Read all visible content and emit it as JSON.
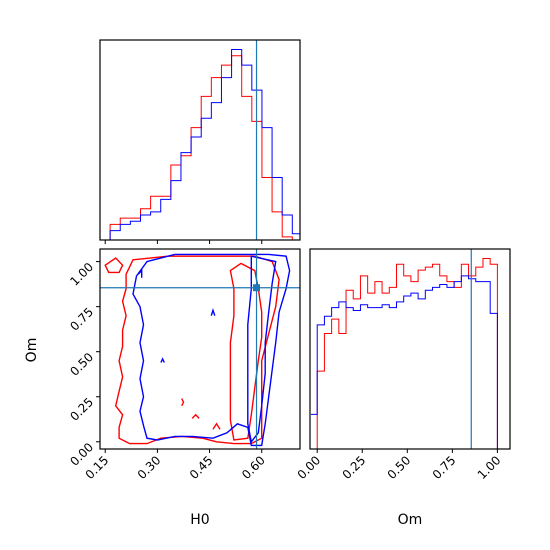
{
  "chart_data": [
    {
      "type": "histogram",
      "panel": "H0 marginal",
      "xlim": [
        0.135,
        0.71
      ],
      "truth": 0.585,
      "bins": [
        0.135,
        0.1641,
        0.1932,
        0.2223,
        0.2514,
        0.2805,
        0.3096,
        0.3387,
        0.3678,
        0.3969,
        0.426,
        0.4551,
        0.4842,
        0.5133,
        0.5424,
        0.5715,
        0.6006,
        0.6297,
        0.6588,
        0.6879,
        0.71
      ],
      "series": [
        {
          "color": "#ff0000",
          "values": [
            0,
            5,
            7,
            7,
            10,
            14,
            14,
            24,
            27,
            36,
            46,
            52,
            56,
            59,
            46,
            38,
            20,
            9,
            1,
            0
          ]
        },
        {
          "color": "#0000ff",
          "values": [
            0,
            3,
            5,
            6,
            8,
            9,
            13,
            19,
            28,
            33,
            39,
            44,
            52,
            61,
            56,
            48,
            36,
            20,
            8,
            2
          ]
        }
      ]
    },
    {
      "type": "histogram",
      "panel": "Om marginal",
      "xlim": [
        -0.04,
        1.07
      ],
      "truth": 0.855,
      "bins": [
        -0.035,
        0.0,
        0.04,
        0.08,
        0.12,
        0.16,
        0.2,
        0.24,
        0.28,
        0.32,
        0.36,
        0.4,
        0.44,
        0.48,
        0.52,
        0.56,
        0.6,
        0.64,
        0.68,
        0.72,
        0.76,
        0.8,
        0.84,
        0.88,
        0.92,
        0.96,
        1.0,
        1.07
      ],
      "series": [
        {
          "color": "#ff0000",
          "values": [
            0,
            27,
            40,
            45,
            40,
            55,
            52,
            60,
            54,
            58,
            54,
            56,
            64,
            60,
            58,
            62,
            63,
            64,
            60,
            58,
            56,
            64,
            60,
            63,
            66,
            64,
            0
          ]
        },
        {
          "color": "#0000ff",
          "values": [
            12,
            43,
            46,
            49,
            51,
            49,
            48,
            50,
            49,
            49,
            50,
            49,
            51,
            53,
            54,
            52,
            55,
            56,
            57,
            56,
            58,
            60,
            59,
            58,
            58,
            47,
            0
          ]
        }
      ]
    },
    {
      "type": "contour",
      "panel": "Om vs H0",
      "xlabel": "H0",
      "ylabel": "Om",
      "xlim": [
        0.135,
        0.71
      ],
      "ylim": [
        -0.04,
        1.07
      ],
      "xticks": [
        "0.15",
        "0.30",
        "0.45",
        "0.60"
      ],
      "yticks": [
        "0.00",
        "0.25",
        "0.50",
        "0.75",
        "1.00"
      ],
      "om_ticks": [
        "0.00",
        "0.25",
        "0.50",
        "0.75",
        "1.00"
      ],
      "om_label": "Om",
      "truth": {
        "x": 0.585,
        "y": 0.855
      },
      "series": [
        {
          "color": "#ff0000"
        },
        {
          "color": "#0000ff"
        }
      ]
    }
  ]
}
